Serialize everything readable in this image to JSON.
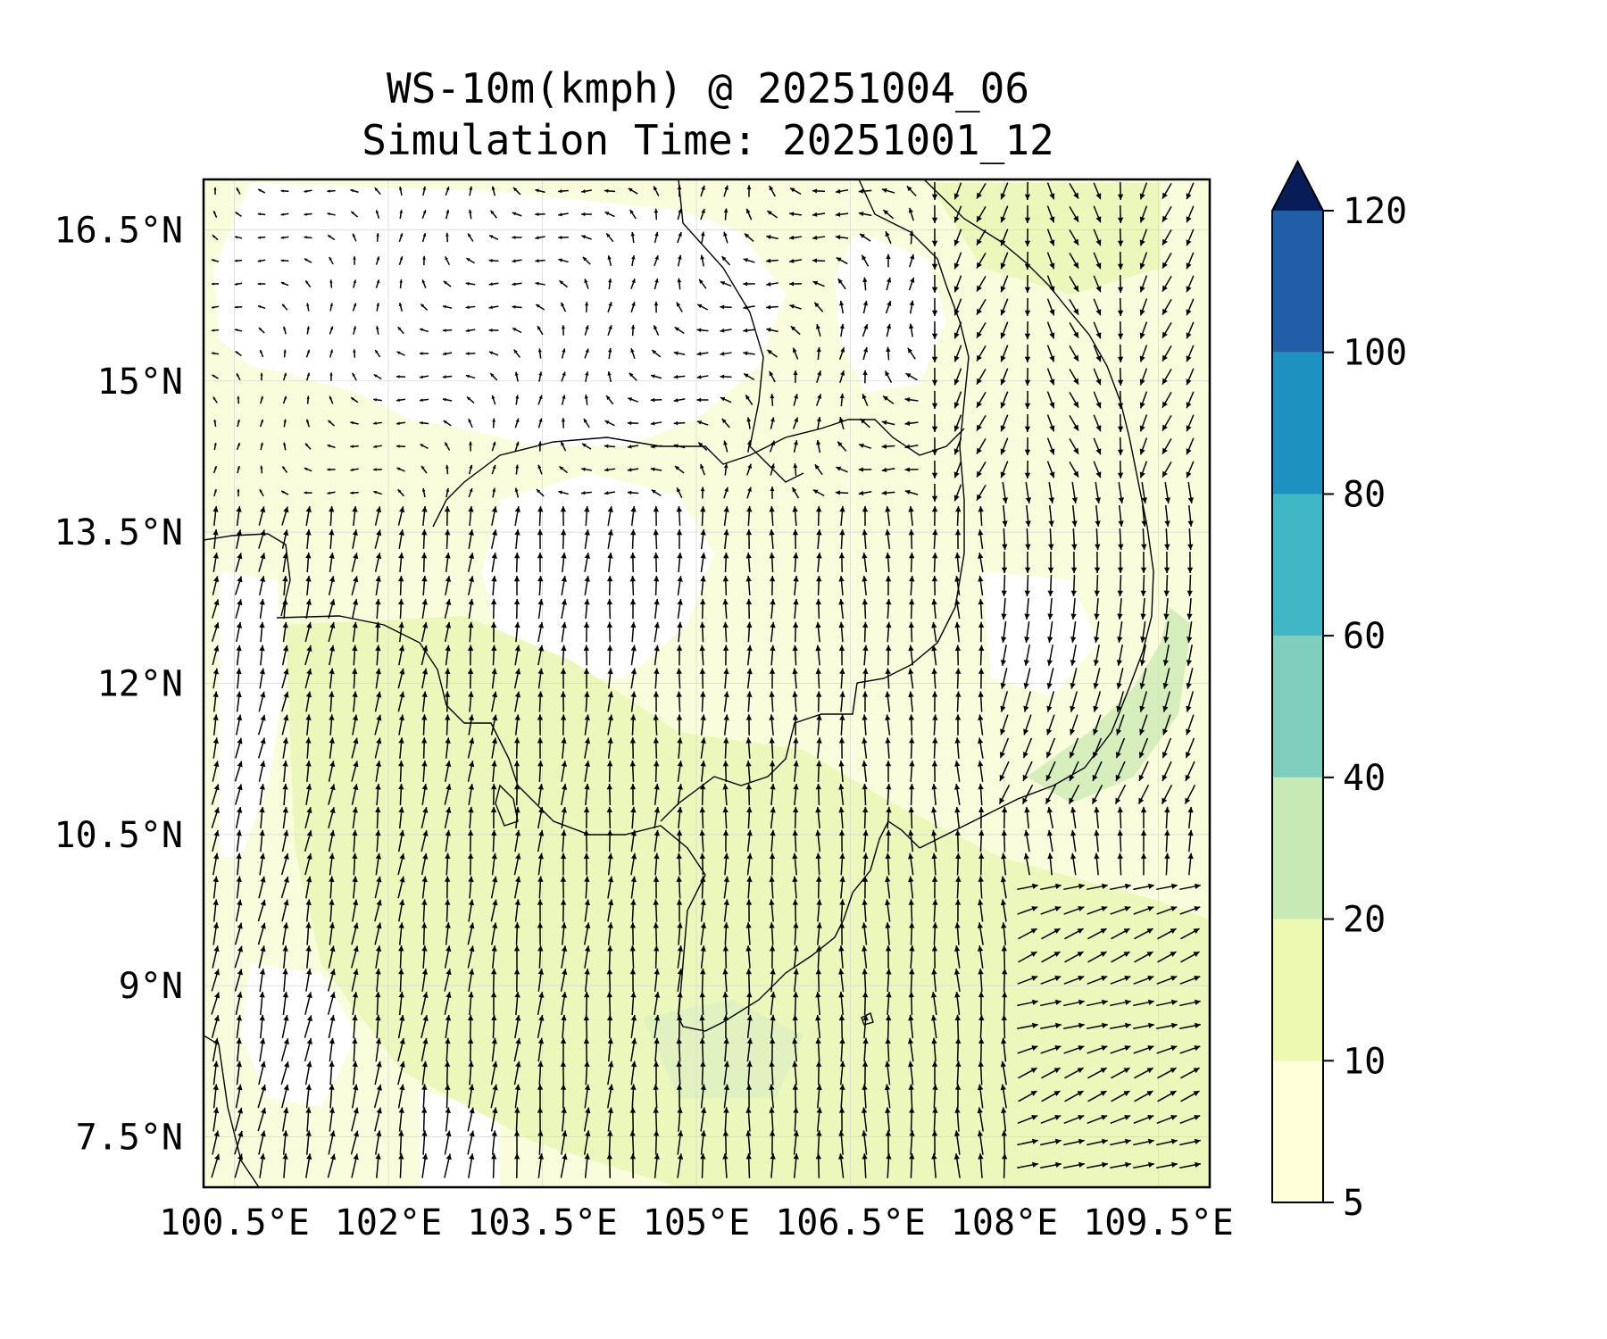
{
  "title": {
    "line1": "WS-10m(kmph) @ 20251004_06",
    "line2": "Simulation Time: 20251001_12"
  },
  "map": {
    "variable": "10 m wind speed",
    "units": "kmph",
    "lon_range": [
      100.2,
      110.0
    ],
    "lat_range": [
      7.0,
      17.0
    ],
    "x_ticks": [
      {
        "value": 100.5,
        "label": "100.5°E"
      },
      {
        "value": 102.0,
        "label": "102°E"
      },
      {
        "value": 103.5,
        "label": "103.5°E"
      },
      {
        "value": 105.0,
        "label": "105°E"
      },
      {
        "value": 106.5,
        "label": "106.5°E"
      },
      {
        "value": 108.0,
        "label": "108°E"
      },
      {
        "value": 109.5,
        "label": "109.5°E"
      }
    ],
    "y_ticks": [
      {
        "value": 16.5,
        "label": "16.5°N"
      },
      {
        "value": 15.0,
        "label": "15°N"
      },
      {
        "value": 13.5,
        "label": "13.5°N"
      },
      {
        "value": 12.0,
        "label": "12°N"
      },
      {
        "value": 10.5,
        "label": "10.5°N"
      },
      {
        "value": 9.0,
        "label": "9°N"
      },
      {
        "value": 7.5,
        "label": "7.5°N"
      }
    ]
  },
  "colorbar": {
    "levels": [
      5,
      10,
      20,
      40,
      60,
      80,
      100,
      120
    ],
    "tick_labels": [
      "5",
      "10",
      "20",
      "40",
      "60",
      "80",
      "100",
      "120"
    ],
    "colors": [
      "#ffffd9",
      "#edf8b1",
      "#c7e9b4",
      "#7fcdbb",
      "#41b6c4",
      "#1d91c0",
      "#225ea8",
      "#0c2c84"
    ],
    "extend_color": "#081d58",
    "extend": "max"
  },
  "colors": {
    "land_fill": "#f7fcd9",
    "speed_10_20": "#ecf7bb",
    "speed_20_40": "#d5eebb",
    "arrow": "#000000",
    "coast": "#000000"
  }
}
